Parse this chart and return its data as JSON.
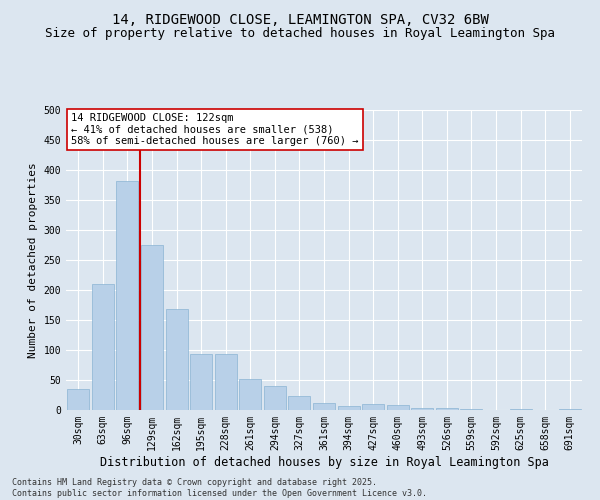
{
  "title": "14, RIDGEWOOD CLOSE, LEAMINGTON SPA, CV32 6BW",
  "subtitle": "Size of property relative to detached houses in Royal Leamington Spa",
  "xlabel": "Distribution of detached houses by size in Royal Leamington Spa",
  "ylabel": "Number of detached properties",
  "categories": [
    "30sqm",
    "63sqm",
    "96sqm",
    "129sqm",
    "162sqm",
    "195sqm",
    "228sqm",
    "261sqm",
    "294sqm",
    "327sqm",
    "361sqm",
    "394sqm",
    "427sqm",
    "460sqm",
    "493sqm",
    "526sqm",
    "559sqm",
    "592sqm",
    "625sqm",
    "658sqm",
    "691sqm"
  ],
  "values": [
    35,
    210,
    382,
    275,
    168,
    93,
    93,
    52,
    40,
    24,
    11,
    7,
    10,
    9,
    4,
    4,
    1,
    0,
    1,
    0,
    1
  ],
  "bar_color": "#b8d0e8",
  "bar_edge_color": "#8ab4d4",
  "vline_bin": 3,
  "vline_color": "#cc0000",
  "annotation_line1": "14 RIDGEWOOD CLOSE: 122sqm",
  "annotation_line2": "← 41% of detached houses are smaller (538)",
  "annotation_line3": "58% of semi-detached houses are larger (760) →",
  "annotation_box_color": "#ffffff",
  "annotation_box_edge": "#cc0000",
  "ylim": [
    0,
    500
  ],
  "yticks": [
    0,
    50,
    100,
    150,
    200,
    250,
    300,
    350,
    400,
    450,
    500
  ],
  "background_color": "#dce6f0",
  "footnote": "Contains HM Land Registry data © Crown copyright and database right 2025.\nContains public sector information licensed under the Open Government Licence v3.0.",
  "title_fontsize": 10,
  "subtitle_fontsize": 9,
  "xlabel_fontsize": 8.5,
  "ylabel_fontsize": 8,
  "tick_fontsize": 7,
  "annot_fontsize": 7.5,
  "footnote_fontsize": 6
}
